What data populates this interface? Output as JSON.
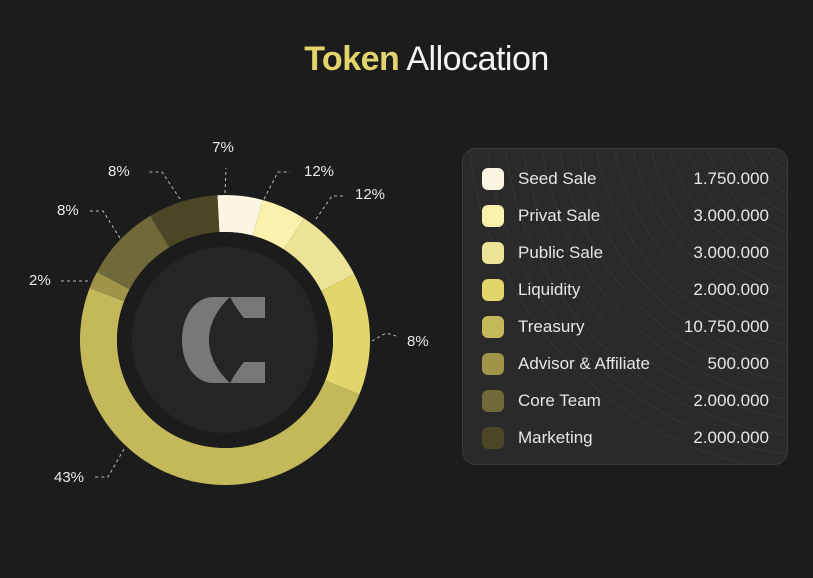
{
  "title": {
    "highlight": "Token",
    "rest": "Allocation"
  },
  "colors": {
    "accent": "#e2d36a",
    "background": "#1c1c1c",
    "card": "#2a2a2a"
  },
  "logo": {
    "icon": "c-logo-icon"
  },
  "legend": [
    {
      "label": "Seed Sale",
      "value": "1.750.000",
      "color": "#fbf6e2"
    },
    {
      "label": "Privat Sale",
      "value": "3.000.000",
      "color": "#fcf1ac"
    },
    {
      "label": "Public Sale",
      "value": "3.000.000",
      "color": "#ede397"
    },
    {
      "label": "Liquidity",
      "value": "2.000.000",
      "color": "#e2d56b"
    },
    {
      "label": "Treasury",
      "value": "10.750.000",
      "color": "#c3b85a"
    },
    {
      "label": "Advisor & Affiliate",
      "value": "500.000",
      "color": "#9f944a"
    },
    {
      "label": "Core Team",
      "value": "2.000.000",
      "color": "#706939"
    },
    {
      "label": "Marketing",
      "value": "2.000.000",
      "color": "#4a4626"
    }
  ],
  "chart_data": {
    "type": "pie",
    "title": "Token Allocation",
    "categories": [
      "Seed Sale",
      "Privat Sale",
      "Public Sale",
      "Liquidity",
      "Treasury",
      "Advisor & Affiliate",
      "Core Team",
      "Marketing"
    ],
    "values": [
      1750000,
      3000000,
      3000000,
      2000000,
      10750000,
      500000,
      2000000,
      2000000
    ],
    "percent_labels": [
      "7%",
      "12%",
      "12%",
      "8%",
      "43%",
      "2%",
      "8%",
      "8%"
    ],
    "donut": true,
    "legend_position": "right"
  }
}
